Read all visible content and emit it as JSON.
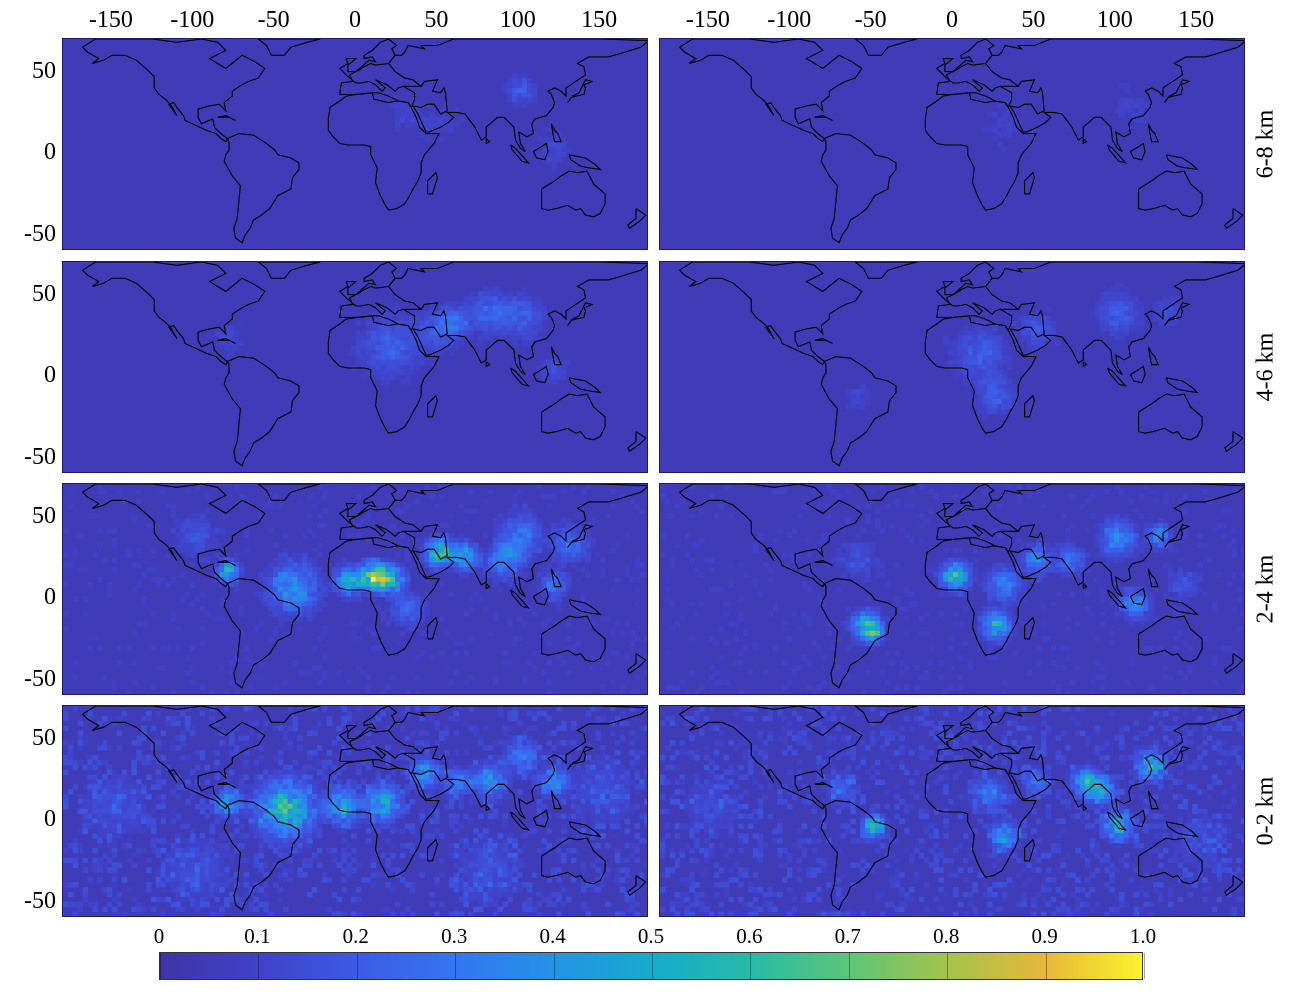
{
  "x_ticks": [
    "-150",
    "-100",
    "-50",
    "0",
    "50",
    "100",
    "150"
  ],
  "y_ticks": [
    "50",
    "0",
    "-50"
  ],
  "row_labels": [
    "6-8 km",
    "4-6 km",
    "2-4 km",
    "0-2 km"
  ],
  "colorbar": {
    "ticks": [
      "0",
      "0.1",
      "0.2",
      "0.3",
      "0.4",
      "0.5",
      "0.6",
      "0.7",
      "0.8",
      "0.9",
      "1.0"
    ],
    "colors": [
      "#3f34a6",
      "#4042c8",
      "#3d5ae6",
      "#3575f3",
      "#2592e6",
      "#16abcc",
      "#25bba8",
      "#5cc57a",
      "#a3c34c",
      "#e6b73a",
      "#fbf22c"
    ]
  },
  "map": {
    "lon_range": [
      -180,
      180
    ],
    "lat_range": [
      -60,
      70
    ],
    "background_value": 0.05
  }
}
